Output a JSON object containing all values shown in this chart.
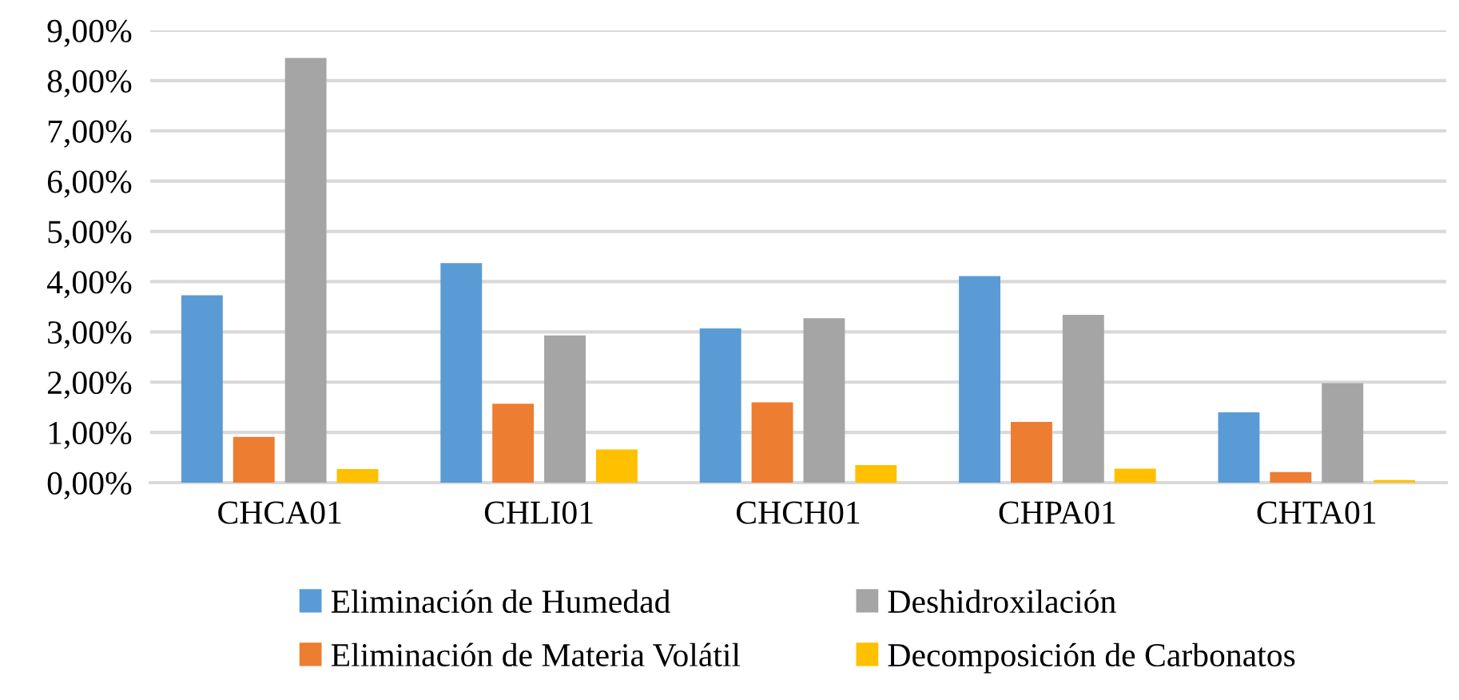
{
  "chart_data": {
    "type": "bar",
    "categories": [
      "CHCA01",
      "CHLI01",
      "CHCH01",
      "CHPA01",
      "CHTA01"
    ],
    "series": [
      {
        "name": "Eliminación de Humedad",
        "color": "#5b9bd5",
        "values": [
          3.73,
          4.37,
          3.07,
          4.11,
          1.4
        ]
      },
      {
        "name": "Eliminación de Materia Volátil",
        "color": "#ed7d31",
        "values": [
          0.91,
          1.57,
          1.6,
          1.21,
          0.21
        ]
      },
      {
        "name": "Deshidroxilación",
        "color": "#a5a5a5",
        "values": [
          8.45,
          2.93,
          3.27,
          3.34,
          1.98
        ]
      },
      {
        "name": "Decomposición de Carbonatos",
        "color": "#ffc000",
        "values": [
          0.27,
          0.66,
          0.35,
          0.28,
          0.05
        ]
      }
    ],
    "ylim": [
      0,
      9
    ],
    "yticks": [
      {
        "value": 0,
        "label": "0,00%"
      },
      {
        "value": 1,
        "label": "1,00%"
      },
      {
        "value": 2,
        "label": "2,00%"
      },
      {
        "value": 3,
        "label": "3,00%"
      },
      {
        "value": 4,
        "label": "4,00%"
      },
      {
        "value": 5,
        "label": "5,00%"
      },
      {
        "value": 6,
        "label": "6,00%"
      },
      {
        "value": 7,
        "label": "7,00%"
      },
      {
        "value": 8,
        "label": "8,00%"
      },
      {
        "value": 9,
        "label": "9,00%"
      }
    ],
    "grid": "y",
    "legend": "bottom"
  }
}
